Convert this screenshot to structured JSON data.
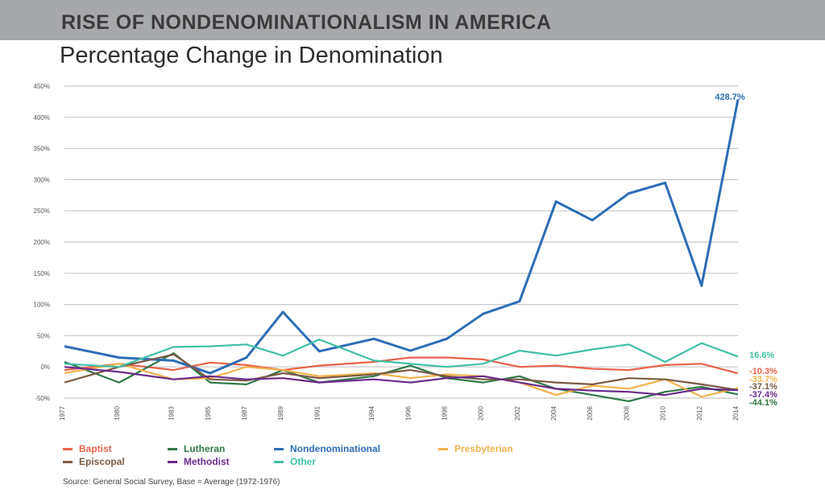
{
  "header": {
    "banner_title": "RISE OF NONDENOMINATIONALISM IN AMERICA",
    "subtitle": "Percentage Change in Denomination"
  },
  "source_note": "Source: General Social Survey, Base = Average (1972-1976)",
  "colors": {
    "banner": "#a7a8aa",
    "grid": "#c8c8c8"
  },
  "chart_data": {
    "type": "line",
    "x": [
      "1977",
      "1980",
      "1983",
      "1985",
      "1987",
      "1989",
      "1991",
      "1994",
      "1996",
      "1998",
      "2000",
      "2002",
      "2004",
      "2006",
      "2008",
      "2010",
      "2012",
      "2014"
    ],
    "ylim": [
      -50,
      450
    ],
    "y_ticks": [
      "-50%",
      "0%",
      "50%",
      "100%",
      "150%",
      "200%",
      "250%",
      "300%",
      "350%",
      "400%",
      "450%"
    ],
    "grid": true,
    "legend_position": "bottom-left",
    "series": [
      {
        "name": "Baptist",
        "color": "#e8634a",
        "values": [
          -5,
          5,
          -5,
          7,
          3,
          -5,
          2,
          8,
          15,
          15,
          12,
          0,
          2,
          -3,
          -5,
          3,
          5,
          -10.3
        ],
        "end_label": "-10.3%"
      },
      {
        "name": "Lutheran",
        "color": "#2f7a48",
        "values": [
          8,
          -25,
          22,
          -25,
          -28,
          -5,
          -25,
          -15,
          2,
          -18,
          -25,
          -15,
          -35,
          -45,
          -55,
          -40,
          -32,
          -44.1
        ],
        "end_label": "-44.1%"
      },
      {
        "name": "Nondenominational",
        "color": "#2c6db5",
        "values": [
          33,
          15,
          10,
          -10,
          15,
          88,
          25,
          45,
          26,
          45,
          85,
          105,
          265,
          235,
          278,
          295,
          130,
          428.7
        ],
        "end_label": "428.7%"
      },
      {
        "name": "Presbyterian",
        "color": "#f2b24c",
        "values": [
          -10,
          5,
          -20,
          -18,
          0,
          -5,
          -15,
          -10,
          -18,
          -12,
          -15,
          -25,
          -45,
          -30,
          -35,
          -20,
          -48,
          -33.7
        ],
        "end_label": "-33.7%"
      },
      {
        "name": "Episcopal",
        "color": "#7a5a44",
        "values": [
          -25,
          0,
          20,
          -20,
          -22,
          -10,
          -18,
          -12,
          -5,
          -15,
          -20,
          -20,
          -25,
          -28,
          -18,
          -20,
          -28,
          -37.1
        ],
        "end_label": "-37.1%"
      },
      {
        "name": "Methodist",
        "color": "#6a2a8a",
        "values": [
          0,
          -8,
          -20,
          -15,
          -20,
          -18,
          -25,
          -20,
          -25,
          -18,
          -15,
          -25,
          -35,
          -38,
          -40,
          -45,
          -35,
          -37.4
        ],
        "end_label": "-37.4%"
      },
      {
        "name": "Other",
        "color": "#3fbfa6",
        "values": [
          5,
          0,
          32,
          33,
          36,
          18,
          44,
          10,
          5,
          0,
          5,
          26,
          18,
          28,
          36,
          8,
          38,
          16.6
        ],
        "end_label": "16.6%"
      }
    ]
  }
}
